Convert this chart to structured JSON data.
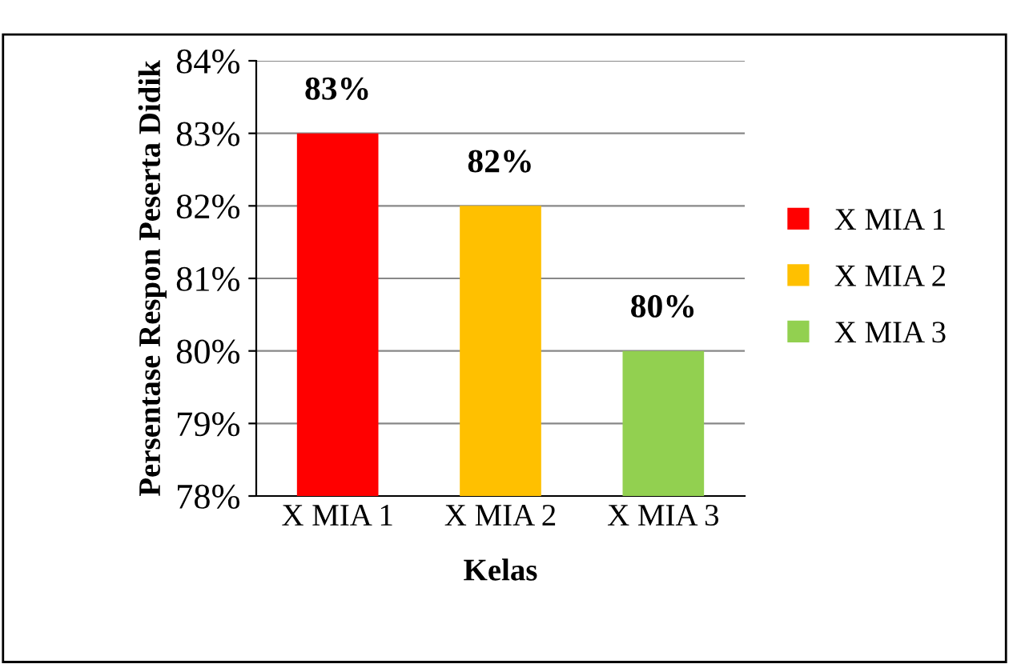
{
  "chart_data": {
    "type": "bar",
    "xlabel": "Kelas",
    "ylabel": "Persentase Respon Peserta Didik",
    "categories": [
      "X MIA 1",
      "X MIA 2",
      "X MIA 3"
    ],
    "series": [
      {
        "name": "X MIA 1",
        "color": "#ff0000",
        "values": [
          83,
          null,
          null
        ],
        "value_labels": [
          "83%",
          null,
          null
        ]
      },
      {
        "name": "X MIA 2",
        "color": "#ffc000",
        "values": [
          null,
          82,
          null
        ],
        "value_labels": [
          null,
          "82%",
          null
        ]
      },
      {
        "name": "X MIA 3",
        "color": "#92d050",
        "values": [
          null,
          null,
          80
        ],
        "value_labels": [
          null,
          null,
          "80%"
        ]
      }
    ],
    "ylim": [
      78,
      84
    ],
    "yticks": [
      {
        "value": 78,
        "label": "78%"
      },
      {
        "value": 79,
        "label": "79%"
      },
      {
        "value": 80,
        "label": "80%"
      },
      {
        "value": 81,
        "label": "81%"
      },
      {
        "value": 82,
        "label": "82%"
      },
      {
        "value": 83,
        "label": "83%"
      },
      {
        "value": 84,
        "label": "84%"
      }
    ],
    "grid": "y",
    "legend": "right"
  }
}
